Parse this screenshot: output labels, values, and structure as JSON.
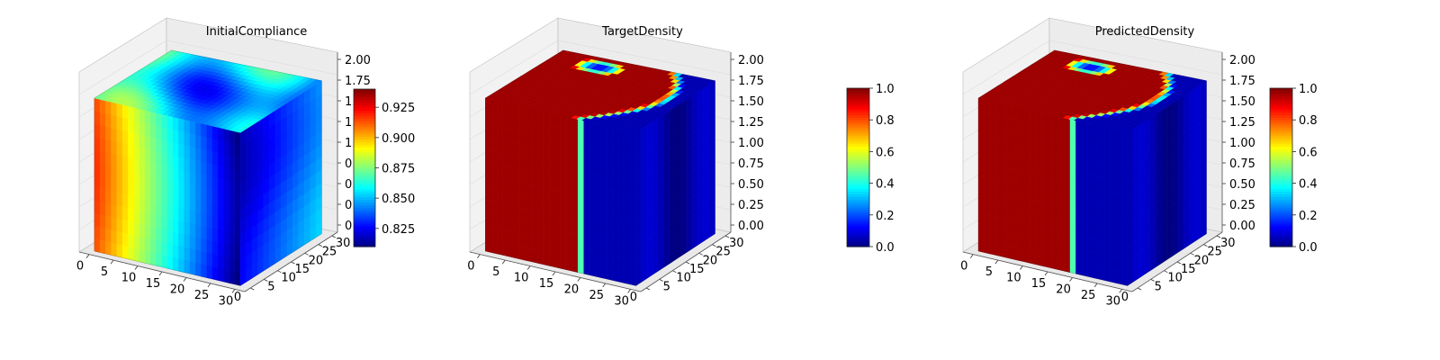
{
  "chart_data": [
    {
      "type": "voxel3d",
      "title": "InitialCompliance",
      "x_ticks": [
        "0",
        "5",
        "10",
        "15",
        "20",
        "25",
        "30"
      ],
      "y_ticks": [
        "0",
        "5",
        "10",
        "15",
        "20",
        "25",
        "30"
      ],
      "z_ticks": [
        "0",
        "0.25",
        "0.50",
        "0.75",
        "1.00",
        "1.25",
        "1.50",
        "1.75",
        "2.00"
      ],
      "colorbar": {
        "min": 0.81,
        "max": 0.94,
        "ticks": [
          "0.825",
          "0.850",
          "0.875",
          "0.900",
          "0.925"
        ]
      },
      "colormap": "jet",
      "field": "compliance"
    },
    {
      "type": "voxel3d",
      "title": "TargetDensity",
      "x_ticks": [
        "0",
        "5",
        "10",
        "15",
        "20",
        "25",
        "30"
      ],
      "y_ticks": [
        "0",
        "5",
        "10",
        "15",
        "20",
        "25",
        "30"
      ],
      "z_ticks": [
        "0.00",
        "0.25",
        "0.50",
        "0.75",
        "1.00",
        "1.25",
        "1.50",
        "1.75",
        "2.00"
      ],
      "colorbar": {
        "min": 0.0,
        "max": 1.0,
        "ticks": [
          "0.0",
          "0.2",
          "0.4",
          "0.6",
          "0.8",
          "1.0"
        ]
      },
      "colormap": "jet",
      "field": "density"
    },
    {
      "type": "voxel3d",
      "title": "PredictedDensity",
      "x_ticks": [
        "0",
        "5",
        "10",
        "15",
        "20",
        "25",
        "30"
      ],
      "y_ticks": [
        "0",
        "5",
        "10",
        "15",
        "20",
        "25",
        "30"
      ],
      "z_ticks": [
        "0.00",
        "0.25",
        "0.50",
        "0.75",
        "1.00",
        "1.25",
        "1.50",
        "1.75",
        "2.00"
      ],
      "colorbar": {
        "min": 0.0,
        "max": 1.0,
        "ticks": [
          "0.0",
          "0.2",
          "0.4",
          "0.6",
          "0.8",
          "1.0"
        ]
      },
      "colormap": "jet",
      "field": "density"
    }
  ]
}
